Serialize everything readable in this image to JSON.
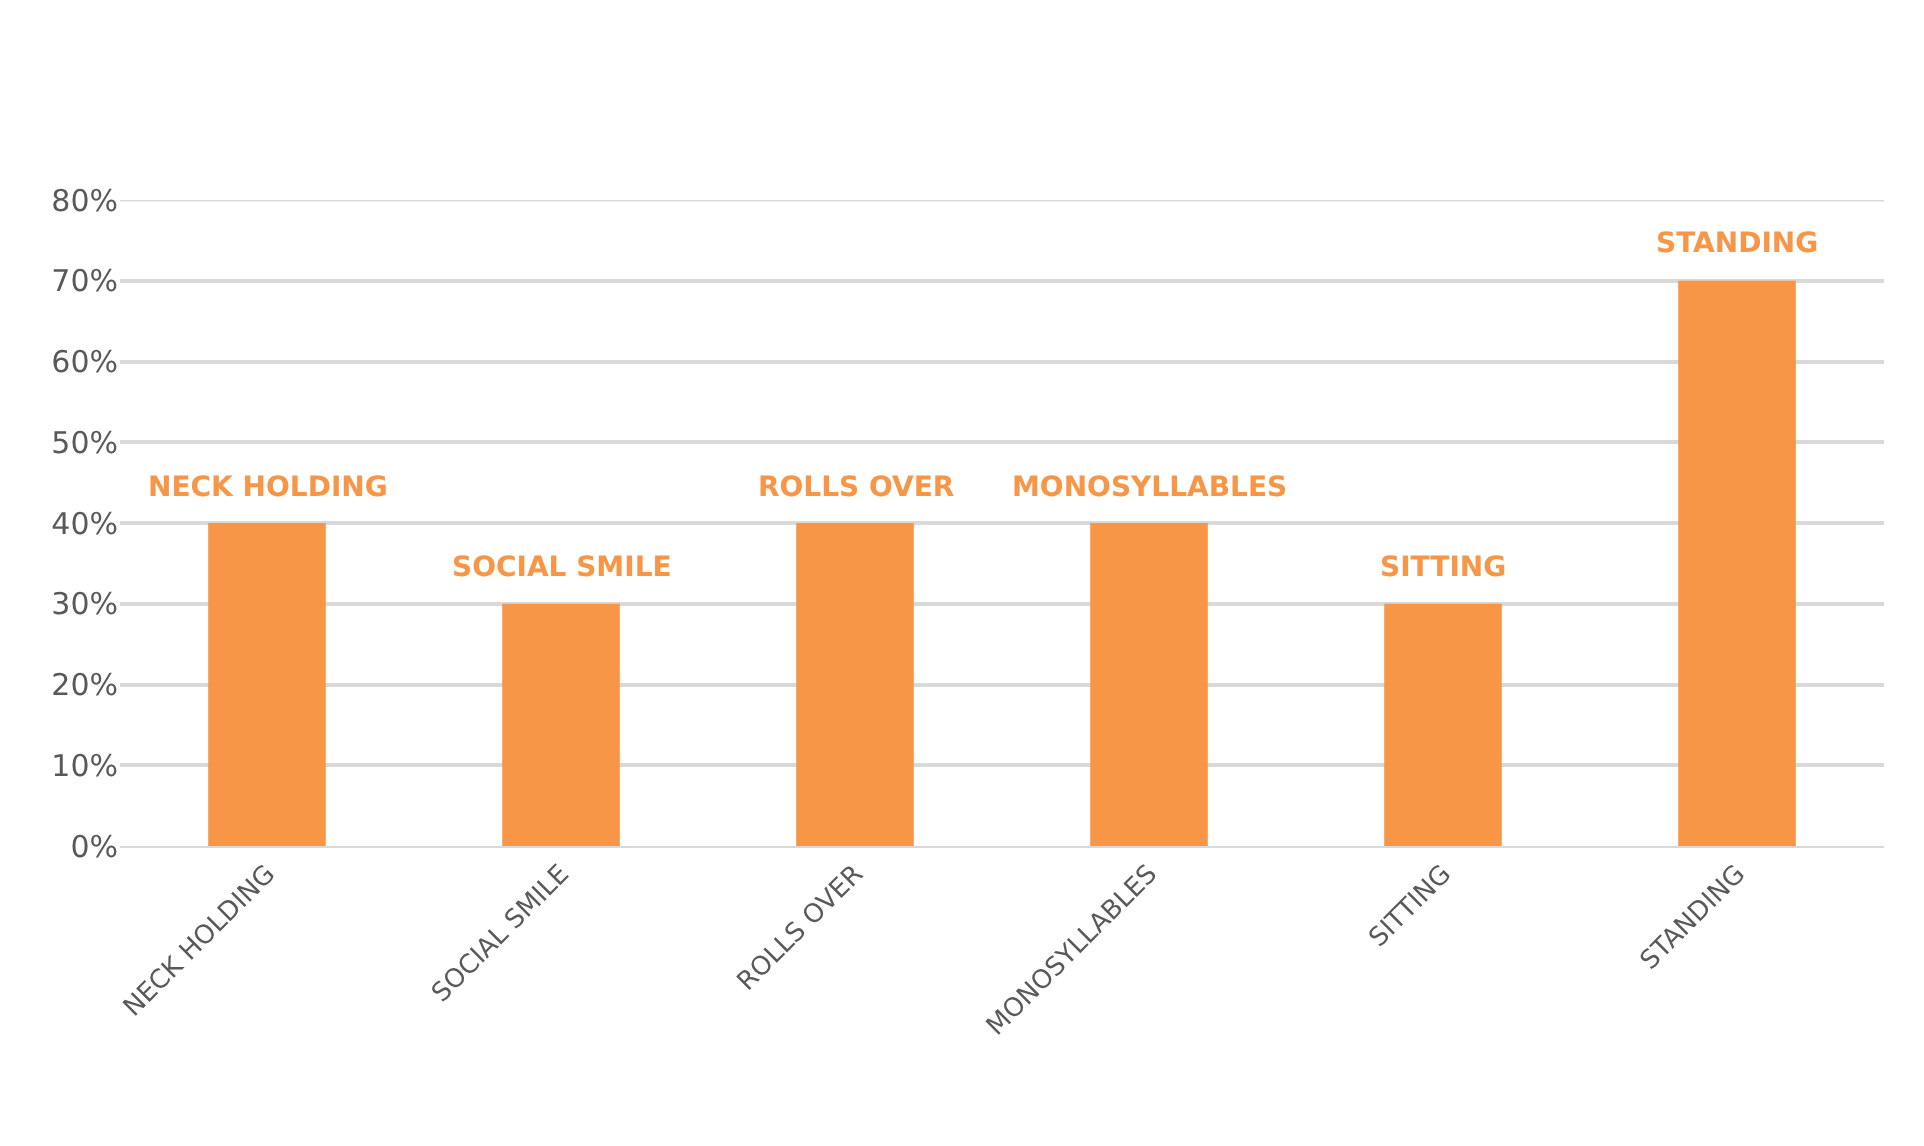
{
  "chart_data": {
    "type": "bar",
    "categories": [
      "NECK HOLDING",
      "SOCIAL SMILE",
      "ROLLS OVER",
      "MONOSYLLABLES",
      "SITTING",
      "STANDING"
    ],
    "values": [
      40,
      30,
      40,
      40,
      30,
      70
    ],
    "value_labels": [
      "NECK HOLDING",
      "SOCIAL SMILE",
      "ROLLS OVER",
      "MONOSYLLABLES",
      "SITTING",
      "STANDING"
    ],
    "color": "#f79646",
    "ylim": [
      0,
      80
    ],
    "yticks": [
      {
        "value": 0,
        "label": "0%"
      },
      {
        "value": 10,
        "label": "10%"
      },
      {
        "value": 20,
        "label": "20%"
      },
      {
        "value": 30,
        "label": "30%"
      },
      {
        "value": 40,
        "label": "40%"
      },
      {
        "value": 50,
        "label": "50%"
      },
      {
        "value": 60,
        "label": "60%"
      },
      {
        "value": 70,
        "label": "70%"
      },
      {
        "value": 80,
        "label": "80%"
      }
    ],
    "grid": "y",
    "legend": false
  }
}
